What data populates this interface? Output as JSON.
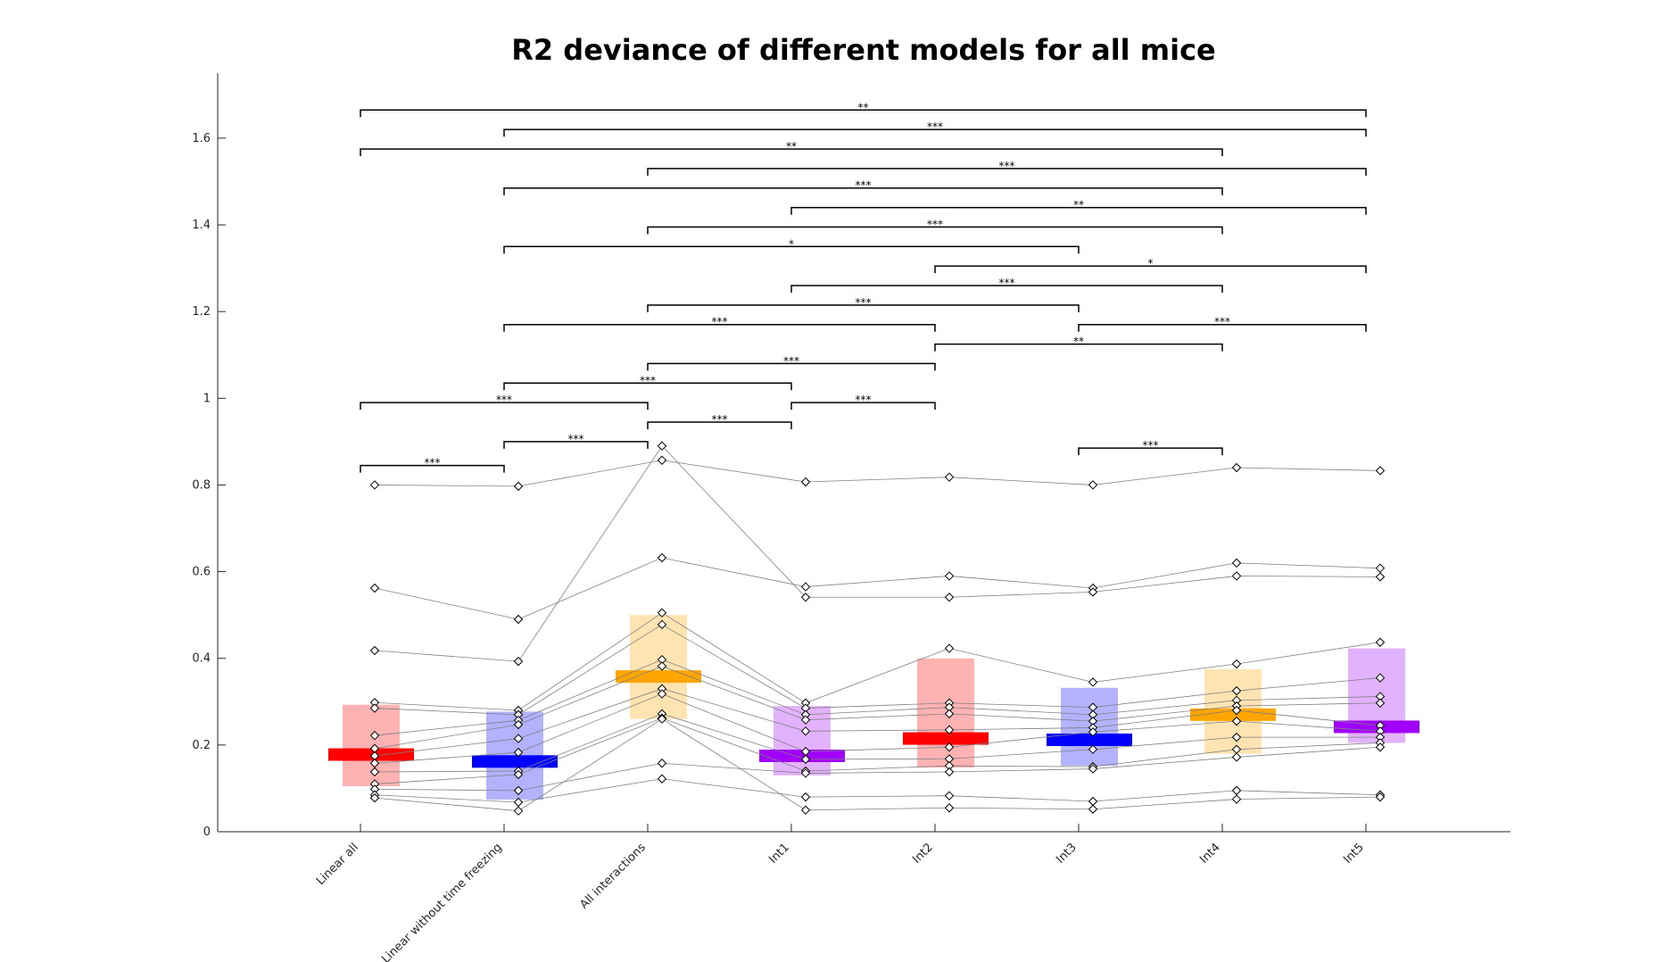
{
  "chart_data": {
    "type": "scatter",
    "title": "R2 deviance of different models for all mice",
    "xlabel": "",
    "ylabel": "",
    "ylim": [
      0,
      1.75
    ],
    "yticks": [
      0,
      0.2,
      0.4,
      0.6,
      0.8,
      1,
      1.2,
      1.4,
      1.6
    ],
    "ytick_labels": [
      "0",
      "0.2",
      "0.4",
      "0.6",
      "0.8",
      "1",
      "1.2",
      "1.4",
      "1.6"
    ],
    "categories": [
      "Linear all",
      "Linear without time freezing",
      "All interactions",
      "Int1",
      "Int2",
      "Int3",
      "Int4",
      "Int5"
    ],
    "group_colors": [
      "#ff0000",
      "#0000ff",
      "#ffa500",
      "#a100ff",
      "#ff0000",
      "#0000ff",
      "#ffa500",
      "#a100ff"
    ],
    "summary": [
      {
        "mean": 0.178,
        "lower": 0.105,
        "upper": 0.293
      },
      {
        "mean": 0.162,
        "lower": 0.074,
        "upper": 0.277
      },
      {
        "mean": 0.358,
        "lower": 0.26,
        "upper": 0.5
      },
      {
        "mean": 0.175,
        "lower": 0.13,
        "upper": 0.29
      },
      {
        "mean": 0.215,
        "lower": 0.148,
        "upper": 0.4
      },
      {
        "mean": 0.212,
        "lower": 0.152,
        "upper": 0.332
      },
      {
        "mean": 0.27,
        "lower": 0.18,
        "upper": 0.375
      },
      {
        "mean": 0.242,
        "lower": 0.205,
        "upper": 0.423
      }
    ],
    "series": [
      {
        "values": [
          0.8,
          0.797,
          0.857,
          0.807,
          0.818,
          0.8,
          0.84,
          0.833
        ]
      },
      {
        "values": [
          0.562,
          0.49,
          0.632,
          0.565,
          0.59,
          0.562,
          0.62,
          0.608
        ]
      },
      {
        "values": [
          0.418,
          0.393,
          0.89,
          0.541,
          0.541,
          0.553,
          0.59,
          0.588
        ]
      },
      {
        "values": [
          0.298,
          0.28,
          0.505,
          0.297,
          0.423,
          0.345,
          0.387,
          0.437
        ]
      },
      {
        "values": [
          0.285,
          0.27,
          0.478,
          0.285,
          0.297,
          0.287,
          0.325,
          0.355
        ]
      },
      {
        "values": [
          0.222,
          0.257,
          0.397,
          0.27,
          0.287,
          0.27,
          0.303,
          0.312
        ]
      },
      {
        "values": [
          0.192,
          0.247,
          0.382,
          0.258,
          0.272,
          0.255,
          0.29,
          0.297
        ]
      },
      {
        "values": [
          0.175,
          0.215,
          0.33,
          0.232,
          0.235,
          0.24,
          0.28,
          0.245
        ]
      },
      {
        "values": [
          0.158,
          0.183,
          0.318,
          0.185,
          0.195,
          0.23,
          0.255,
          0.232
        ]
      },
      {
        "values": [
          0.138,
          0.14,
          0.272,
          0.167,
          0.168,
          0.19,
          0.218,
          0.218
        ]
      },
      {
        "values": [
          0.11,
          0.132,
          0.262,
          0.14,
          0.152,
          0.15,
          0.19,
          0.205
        ]
      },
      {
        "values": [
          0.098,
          0.095,
          0.158,
          0.135,
          0.138,
          0.145,
          0.172,
          0.195
        ]
      },
      {
        "values": [
          0.085,
          0.068,
          0.122,
          0.08,
          0.083,
          0.07,
          0.095,
          0.085
        ]
      },
      {
        "values": [
          0.078,
          0.048,
          0.26,
          0.05,
          0.055,
          0.052,
          0.075,
          0.08
        ]
      }
    ],
    "significance": [
      {
        "from": 0,
        "to": 1,
        "y": 0.845,
        "stars": "***"
      },
      {
        "from": 1,
        "to": 2,
        "y": 0.9,
        "stars": "***"
      },
      {
        "from": 2,
        "to": 3,
        "y": 0.945,
        "stars": "***"
      },
      {
        "from": 0,
        "to": 2,
        "y": 0.99,
        "stars": "***"
      },
      {
        "from": 3,
        "to": 4,
        "y": 0.99,
        "stars": "***"
      },
      {
        "from": 1,
        "to": 3,
        "y": 1.035,
        "stars": "***"
      },
      {
        "from": 2,
        "to": 4,
        "y": 1.08,
        "stars": "***"
      },
      {
        "from": 4,
        "to": 6,
        "y": 1.125,
        "stars": "**"
      },
      {
        "from": 1,
        "to": 4,
        "y": 1.17,
        "stars": "***"
      },
      {
        "from": 5,
        "to": 7,
        "y": 1.17,
        "stars": "***"
      },
      {
        "from": 2,
        "to": 5,
        "y": 1.215,
        "stars": "***"
      },
      {
        "from": 3,
        "to": 6,
        "y": 1.26,
        "stars": "***"
      },
      {
        "from": 4,
        "to": 7,
        "y": 1.305,
        "stars": "*"
      },
      {
        "from": 1,
        "to": 5,
        "y": 1.35,
        "stars": "*"
      },
      {
        "from": 2,
        "to": 6,
        "y": 1.395,
        "stars": "***"
      },
      {
        "from": 3,
        "to": 7,
        "y": 1.44,
        "stars": "**"
      },
      {
        "from": 1,
        "to": 6,
        "y": 1.485,
        "stars": "***"
      },
      {
        "from": 2,
        "to": 7,
        "y": 1.53,
        "stars": "***"
      },
      {
        "from": 0,
        "to": 6,
        "y": 1.575,
        "stars": "**"
      },
      {
        "from": 1,
        "to": 7,
        "y": 1.62,
        "stars": "***"
      },
      {
        "from": 0,
        "to": 7,
        "y": 1.665,
        "stars": "**"
      },
      {
        "from": 5,
        "to": 6,
        "y": 0.885,
        "stars": "***"
      }
    ]
  }
}
